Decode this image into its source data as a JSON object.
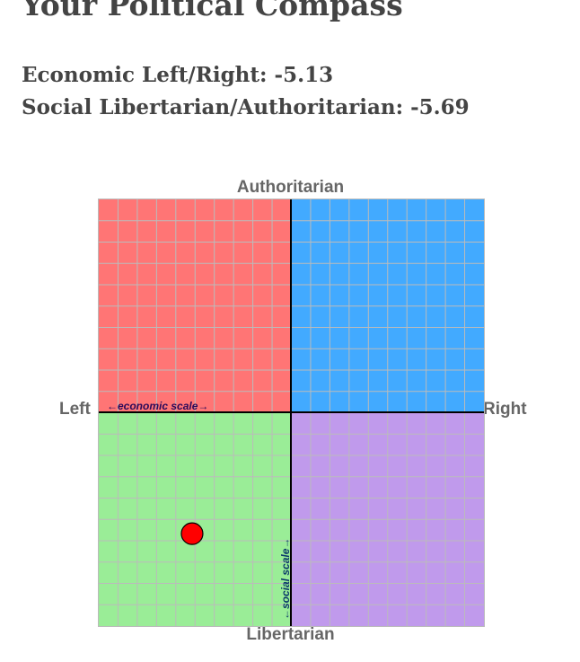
{
  "header": {
    "title": "Your Political Compass"
  },
  "scores": {
    "economic_label": "Economic Left/Right: -5.13",
    "social_label": "Social Libertarian/Authoritarian: -5.69",
    "economic_value": -5.13,
    "social_value": -5.69
  },
  "compass": {
    "axis_top": "Authoritarian",
    "axis_bottom": "Libertarian",
    "axis_left": "Left",
    "axis_right": "Right",
    "economic_scale_label": "←economic scale→",
    "social_scale_label": "←social scale→",
    "range": [
      -10,
      10
    ],
    "colors": {
      "authoritarian_left": "#ff7575",
      "authoritarian_right": "#42aaff",
      "libertarian_left": "#9aed97",
      "libertarian_right": "#c09aec",
      "grid": "#bbbbbb",
      "axes": "#000000",
      "marker": "#ff0000",
      "scale_text_economic": "#2b0a5a",
      "scale_text_social": "#0b3a6a"
    }
  }
}
